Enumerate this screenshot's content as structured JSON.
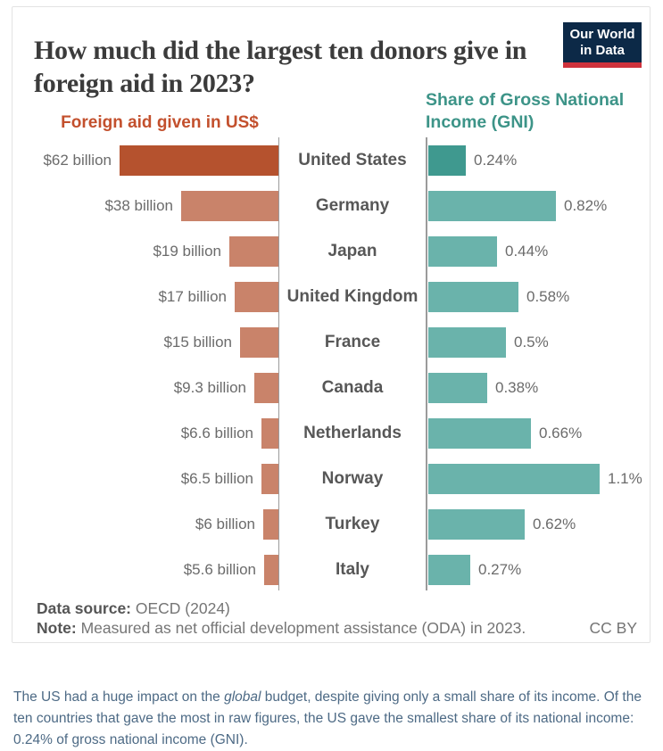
{
  "header": {
    "title": "How much did the largest ten donors give in foreign aid in 2023?",
    "logo": {
      "line1": "Our World",
      "line2": "in Data"
    }
  },
  "chart_data": {
    "type": "bar",
    "variant": "two-sided-diverging-horizontal",
    "title": "How much did the largest ten donors give in foreign aid in 2023?",
    "categories": [
      "United States",
      "Germany",
      "Japan",
      "United Kingdom",
      "France",
      "Canada",
      "Netherlands",
      "Norway",
      "Turkey",
      "Italy"
    ],
    "series": [
      {
        "name": "Foreign aid given in US$",
        "unit": "US$ billions",
        "side": "left",
        "values": [
          62,
          38,
          19,
          17,
          15,
          9.3,
          6.6,
          6.5,
          6,
          5.6
        ],
        "labels": [
          "$62 billion",
          "$38 billion",
          "$19 billion",
          "$17 billion",
          "$15 billion",
          "$9.3 billion",
          "$6.6 billion",
          "$6.5 billion",
          "$6 billion",
          "$5.6 billion"
        ],
        "xlim": [
          0,
          62
        ]
      },
      {
        "name": "Share of Gross National Income (GNI)",
        "unit": "%",
        "side": "right",
        "values": [
          0.24,
          0.82,
          0.44,
          0.58,
          0.5,
          0.38,
          0.66,
          1.1,
          0.62,
          0.27
        ],
        "labels": [
          "0.24%",
          "0.82%",
          "0.44%",
          "0.58%",
          "0.5%",
          "0.38%",
          "0.66%",
          "1.1%",
          "0.62%",
          "0.27%"
        ],
        "xlim": [
          0,
          1.1
        ]
      }
    ],
    "highlight_category": "United States",
    "highlight_index": 0,
    "legend_position": "none",
    "grid": false
  },
  "colors": {
    "aid_bar": "#c9836a",
    "aid_bar_highlight": "#b5522e",
    "gni_bar": "#6ab3ab",
    "gni_bar_highlight": "#3f998f",
    "aid_header": "#c3502d",
    "gni_header": "#3d9488",
    "logo_bg": "#0c2947",
    "logo_stripe": "#cf323c"
  },
  "footer": {
    "source_label": "Data source:",
    "source_value": " OECD (2024)",
    "note_label": "Note:",
    "note_value": " Measured as net official development assistance (ODA) in 2023.",
    "license": "CC BY"
  },
  "caption": {
    "before": "The US had a huge impact on the ",
    "italic": "global",
    "after": " budget, despite giving only a small share of its income. Of the ten countries that gave the most in raw figures, the US gave the smallest share of its national income: 0.24% of gross national income (GNI)."
  }
}
